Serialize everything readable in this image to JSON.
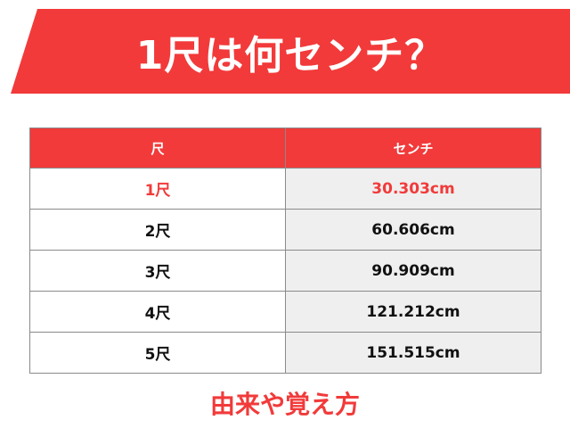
{
  "banner": {
    "title": "1尺は何センチ？"
  },
  "table": {
    "headers": [
      "尺",
      "センチ"
    ],
    "rows": [
      {
        "shaku": "1尺",
        "cm": "30.303cm",
        "highlight": true
      },
      {
        "shaku": "2尺",
        "cm": "60.606cm",
        "highlight": false
      },
      {
        "shaku": "3尺",
        "cm": "90.909cm",
        "highlight": false
      },
      {
        "shaku": "4尺",
        "cm": "121.212cm",
        "highlight": false
      },
      {
        "shaku": "5尺",
        "cm": "151.515cm",
        "highlight": false
      }
    ]
  },
  "subheading": "由来や覚え方",
  "colors": {
    "accent": "#f23a3a",
    "cell_alt": "#efefef",
    "border": "#8a8a8a"
  }
}
